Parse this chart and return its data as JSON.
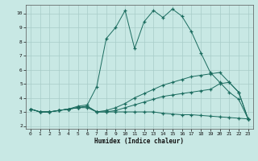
{
  "xlabel": "Humidex (Indice chaleur)",
  "xlim": [
    -0.5,
    23.5
  ],
  "ylim": [
    1.8,
    10.6
  ],
  "xticks": [
    0,
    1,
    2,
    3,
    4,
    5,
    6,
    7,
    8,
    9,
    10,
    11,
    12,
    13,
    14,
    15,
    16,
    17,
    18,
    19,
    20,
    21,
    22,
    23
  ],
  "yticks": [
    2,
    3,
    4,
    5,
    6,
    7,
    8,
    9,
    10
  ],
  "background_color": "#c8e8e4",
  "grid_color": "#a8ccc8",
  "line_color": "#1a6b5e",
  "line1_x": [
    0,
    1,
    2,
    3,
    4,
    5,
    6,
    7,
    8,
    9,
    10,
    11,
    12,
    13,
    14,
    15,
    16,
    17,
    18,
    19,
    20,
    21,
    22,
    23
  ],
  "line1_y": [
    3.2,
    3.0,
    3.0,
    3.1,
    3.2,
    3.3,
    3.3,
    3.0,
    3.0,
    3.0,
    3.0,
    3.0,
    3.0,
    3.0,
    2.9,
    2.85,
    2.8,
    2.8,
    2.75,
    2.7,
    2.65,
    2.6,
    2.55,
    2.5
  ],
  "line2_x": [
    0,
    1,
    2,
    3,
    4,
    5,
    6,
    7,
    8,
    9,
    10,
    11,
    12,
    13,
    14,
    15,
    16,
    17,
    18,
    19,
    20,
    21,
    22,
    23
  ],
  "line2_y": [
    3.2,
    3.0,
    3.0,
    3.1,
    3.2,
    3.3,
    3.4,
    3.0,
    3.0,
    3.1,
    3.3,
    3.5,
    3.7,
    3.9,
    4.1,
    4.2,
    4.3,
    4.4,
    4.5,
    4.6,
    5.0,
    5.1,
    4.4,
    2.5
  ],
  "line3_x": [
    0,
    1,
    2,
    3,
    4,
    5,
    6,
    7,
    8,
    9,
    10,
    11,
    12,
    13,
    14,
    15,
    16,
    17,
    18,
    19,
    20,
    21,
    22,
    23
  ],
  "line3_y": [
    3.2,
    3.0,
    3.0,
    3.1,
    3.2,
    3.3,
    3.4,
    3.0,
    3.1,
    3.3,
    3.6,
    4.0,
    4.3,
    4.6,
    4.9,
    5.1,
    5.3,
    5.5,
    5.6,
    5.7,
    5.8,
    5.1,
    4.4,
    2.5
  ],
  "line4_x": [
    0,
    1,
    2,
    3,
    4,
    5,
    6,
    7,
    8,
    9,
    10,
    11,
    12,
    13,
    14,
    15,
    16,
    17,
    18,
    19,
    20,
    21,
    22,
    23
  ],
  "line4_y": [
    3.2,
    3.0,
    3.0,
    3.1,
    3.2,
    3.4,
    3.5,
    4.8,
    8.2,
    9.0,
    10.2,
    7.5,
    9.4,
    10.2,
    9.7,
    10.3,
    9.8,
    8.7,
    7.2,
    5.8,
    5.1,
    4.4,
    3.9,
    2.5
  ]
}
